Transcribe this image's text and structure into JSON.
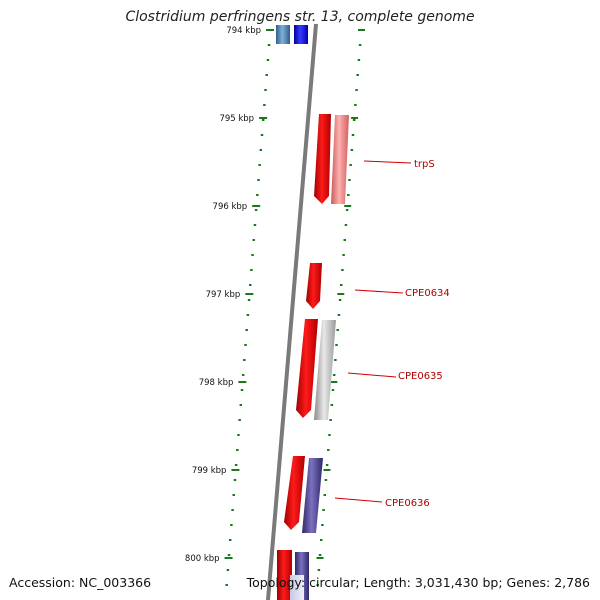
{
  "header": {
    "title": "Clostridium perfringens str. 13, complete genome"
  },
  "footer": {
    "accession": "Accession: NC_003366",
    "topology": "Topology: circular; Length: 3,031,430 bp; Genes: 2,786"
  },
  "scale": {
    "unit": "kbp",
    "ticks": [
      "794 kbp",
      "795 kbp",
      "796 kbp",
      "797 kbp",
      "798 kbp",
      "799 kbp",
      "800 kbp"
    ]
  },
  "genes": [
    {
      "name": "trpS"
    },
    {
      "name": "CPE0634"
    },
    {
      "name": "CPE0635"
    },
    {
      "name": "CPE0636"
    }
  ],
  "colors": {
    "tick": "#1a7a1a",
    "backbone": "#7a7a7a",
    "gene_forward": "#e00000",
    "label": "#c00000"
  }
}
